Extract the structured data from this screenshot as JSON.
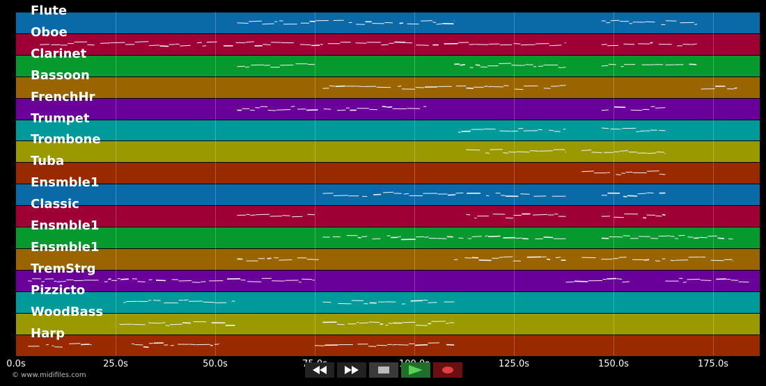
{
  "tracks": [
    {
      "name": "Flute",
      "color": "#0a6aa8"
    },
    {
      "name": "Oboe",
      "color": "#9e0035"
    },
    {
      "name": "Clarinet",
      "color": "#069a2e"
    },
    {
      "name": "Bassoon",
      "color": "#9a6500"
    },
    {
      "name": "FrenchHr",
      "color": "#6a0099"
    },
    {
      "name": "Trumpet",
      "color": "#009a9a"
    },
    {
      "name": "Trombone",
      "color": "#9a9a00"
    },
    {
      "name": "Tuba",
      "color": "#992a00"
    },
    {
      "name": "Ensmble1",
      "color": "#0a6aa8"
    },
    {
      "name": "Classic",
      "color": "#9e0035"
    },
    {
      "name": "Ensmble1",
      "color": "#069a2e"
    },
    {
      "name": "Ensmble1",
      "color": "#9a6500"
    },
    {
      "name": "TremStrg",
      "color": "#6a0099"
    },
    {
      "name": "Pizzicto",
      "color": "#009a9a"
    },
    {
      "name": "WoodBass",
      "color": "#9a9a00"
    },
    {
      "name": "Harp",
      "color": "#992a00"
    }
  ],
  "timeline": {
    "max_seconds": 187,
    "ticks": [
      {
        "value": 0,
        "label": "0.0s"
      },
      {
        "value": 25,
        "label": "25.0s"
      },
      {
        "value": 50,
        "label": "50.0s"
      },
      {
        "value": 75,
        "label": "75.0s"
      },
      {
        "value": 100,
        "label": "100.0s"
      },
      {
        "value": 125,
        "label": "125.0s"
      },
      {
        "value": 150,
        "label": "150.0s"
      },
      {
        "value": 175,
        "label": "175.0s"
      }
    ]
  },
  "note_segments": [
    [
      [
        55.5,
        110
      ],
      [
        147,
        171
      ]
    ],
    [
      [
        6,
        138
      ],
      [
        147,
        171
      ]
    ],
    [
      [
        55.5,
        75
      ],
      [
        110,
        138
      ],
      [
        147,
        171
      ]
    ],
    [
      [
        77,
        138
      ],
      [
        172,
        181
      ]
    ],
    [
      [
        55.5,
        103
      ],
      [
        147,
        163
      ]
    ],
    [
      [
        111,
        138
      ],
      [
        147,
        163
      ]
    ],
    [
      [
        113,
        138
      ],
      [
        142,
        163
      ]
    ],
    [
      [
        142,
        163
      ]
    ],
    [
      [
        77,
        138
      ],
      [
        147,
        163
      ]
    ],
    [
      [
        55.5,
        75
      ],
      [
        113,
        138
      ],
      [
        147,
        163
      ]
    ],
    [
      [
        77,
        138
      ],
      [
        147,
        180
      ]
    ],
    [
      [
        55.5,
        76
      ],
      [
        110,
        138
      ],
      [
        142,
        180
      ]
    ],
    [
      [
        3,
        75
      ],
      [
        138,
        154
      ],
      [
        163,
        184
      ]
    ],
    [
      [
        27,
        55
      ],
      [
        77,
        110
      ]
    ],
    [
      [
        26,
        55
      ],
      [
        77,
        110
      ]
    ],
    [
      [
        3,
        19
      ],
      [
        29,
        51
      ],
      [
        75,
        110
      ]
    ]
  ],
  "controls": {
    "rewind_icon": "rewind-icon",
    "fast_forward_icon": "fast-forward-icon",
    "stop_icon": "stop-icon",
    "play_icon": "play-icon",
    "record_icon": "record-icon"
  },
  "copyright": "© www.midifiles.com"
}
